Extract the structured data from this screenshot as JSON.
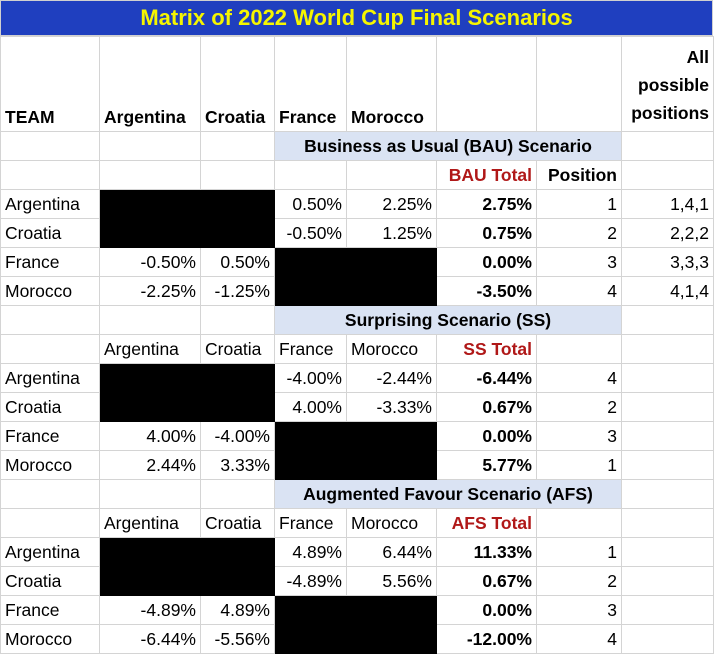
{
  "title": "Matrix of 2022 World Cup Final Scenarios",
  "header": {
    "team": "TEAM",
    "cols": [
      "Argentina",
      "Croatia",
      "France",
      "Morocco"
    ],
    "all_positions": "All possible positions"
  },
  "bau": {
    "label": "Business as Usual (BAU) Scenario",
    "total_label": "BAU Total",
    "position_label": "Position",
    "rows": [
      {
        "team": "Argentina",
        "vals": [
          "",
          "",
          "0.50%",
          "2.25%"
        ],
        "total": "2.75%",
        "pos": "1",
        "all": "1,4,1"
      },
      {
        "team": "Croatia",
        "vals": [
          "",
          "",
          "-0.50%",
          "1.25%"
        ],
        "total": "0.75%",
        "pos": "2",
        "all": "2,2,2"
      },
      {
        "team": "France",
        "vals": [
          "-0.50%",
          "0.50%",
          "",
          ""
        ],
        "total": "0.00%",
        "pos": "3",
        "all": "3,3,3"
      },
      {
        "team": "Morocco",
        "vals": [
          "-2.25%",
          "-1.25%",
          "",
          ""
        ],
        "total": "-3.50%",
        "pos": "4",
        "all": "4,1,4"
      }
    ]
  },
  "ss": {
    "label": "Surprising Scenario (SS)",
    "total_label": "SS Total",
    "cols": [
      "Argentina",
      "Croatia",
      "France",
      "Morocco"
    ],
    "rows": [
      {
        "team": "Argentina",
        "vals": [
          "",
          "",
          "-4.00%",
          "-2.44%"
        ],
        "total": "-6.44%",
        "pos": "4"
      },
      {
        "team": "Croatia",
        "vals": [
          "",
          "",
          "4.00%",
          "-3.33%"
        ],
        "total": "0.67%",
        "pos": "2"
      },
      {
        "team": "France",
        "vals": [
          "4.00%",
          "-4.00%",
          "",
          ""
        ],
        "total": "0.00%",
        "pos": "3"
      },
      {
        "team": "Morocco",
        "vals": [
          "2.44%",
          "3.33%",
          "",
          ""
        ],
        "total": "5.77%",
        "pos": "1"
      }
    ]
  },
  "afs": {
    "label": "Augmented Favour Scenario (AFS)",
    "total_label": "AFS Total",
    "cols": [
      "Argentina",
      "Croatia",
      "France",
      "Morocco"
    ],
    "rows": [
      {
        "team": "Argentina",
        "vals": [
          "",
          "",
          "4.89%",
          "6.44%"
        ],
        "total": "11.33%",
        "pos": "1"
      },
      {
        "team": "Croatia",
        "vals": [
          "",
          "",
          "-4.89%",
          "5.56%"
        ],
        "total": "0.67%",
        "pos": "2"
      },
      {
        "team": "France",
        "vals": [
          "-4.89%",
          "4.89%",
          "",
          ""
        ],
        "total": "0.00%",
        "pos": "3"
      },
      {
        "team": "Morocco",
        "vals": [
          "-6.44%",
          "-5.56%",
          "",
          ""
        ],
        "total": "-12.00%",
        "pos": "4"
      }
    ]
  }
}
